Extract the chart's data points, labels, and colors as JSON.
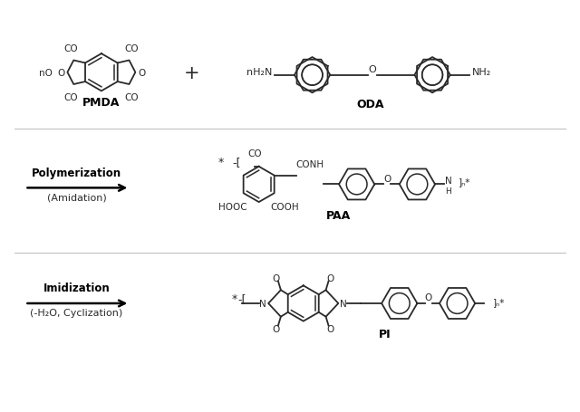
{
  "background_color": "#ffffff",
  "line_color": "#2a2a2a",
  "text_color": "#2a2a2a",
  "bold_color": "#000000",
  "figsize": [
    6.4,
    4.56
  ],
  "dpi": 100,
  "labels": {
    "PMDA": "PMDA",
    "ODA": "ODA",
    "PAA": "PAA",
    "PI": "PI",
    "polymerization": "Polymerization",
    "amidation": "(Amidation)",
    "imidization": "Imidization",
    "cyclization": "(-H₂O, Cyclization)"
  }
}
